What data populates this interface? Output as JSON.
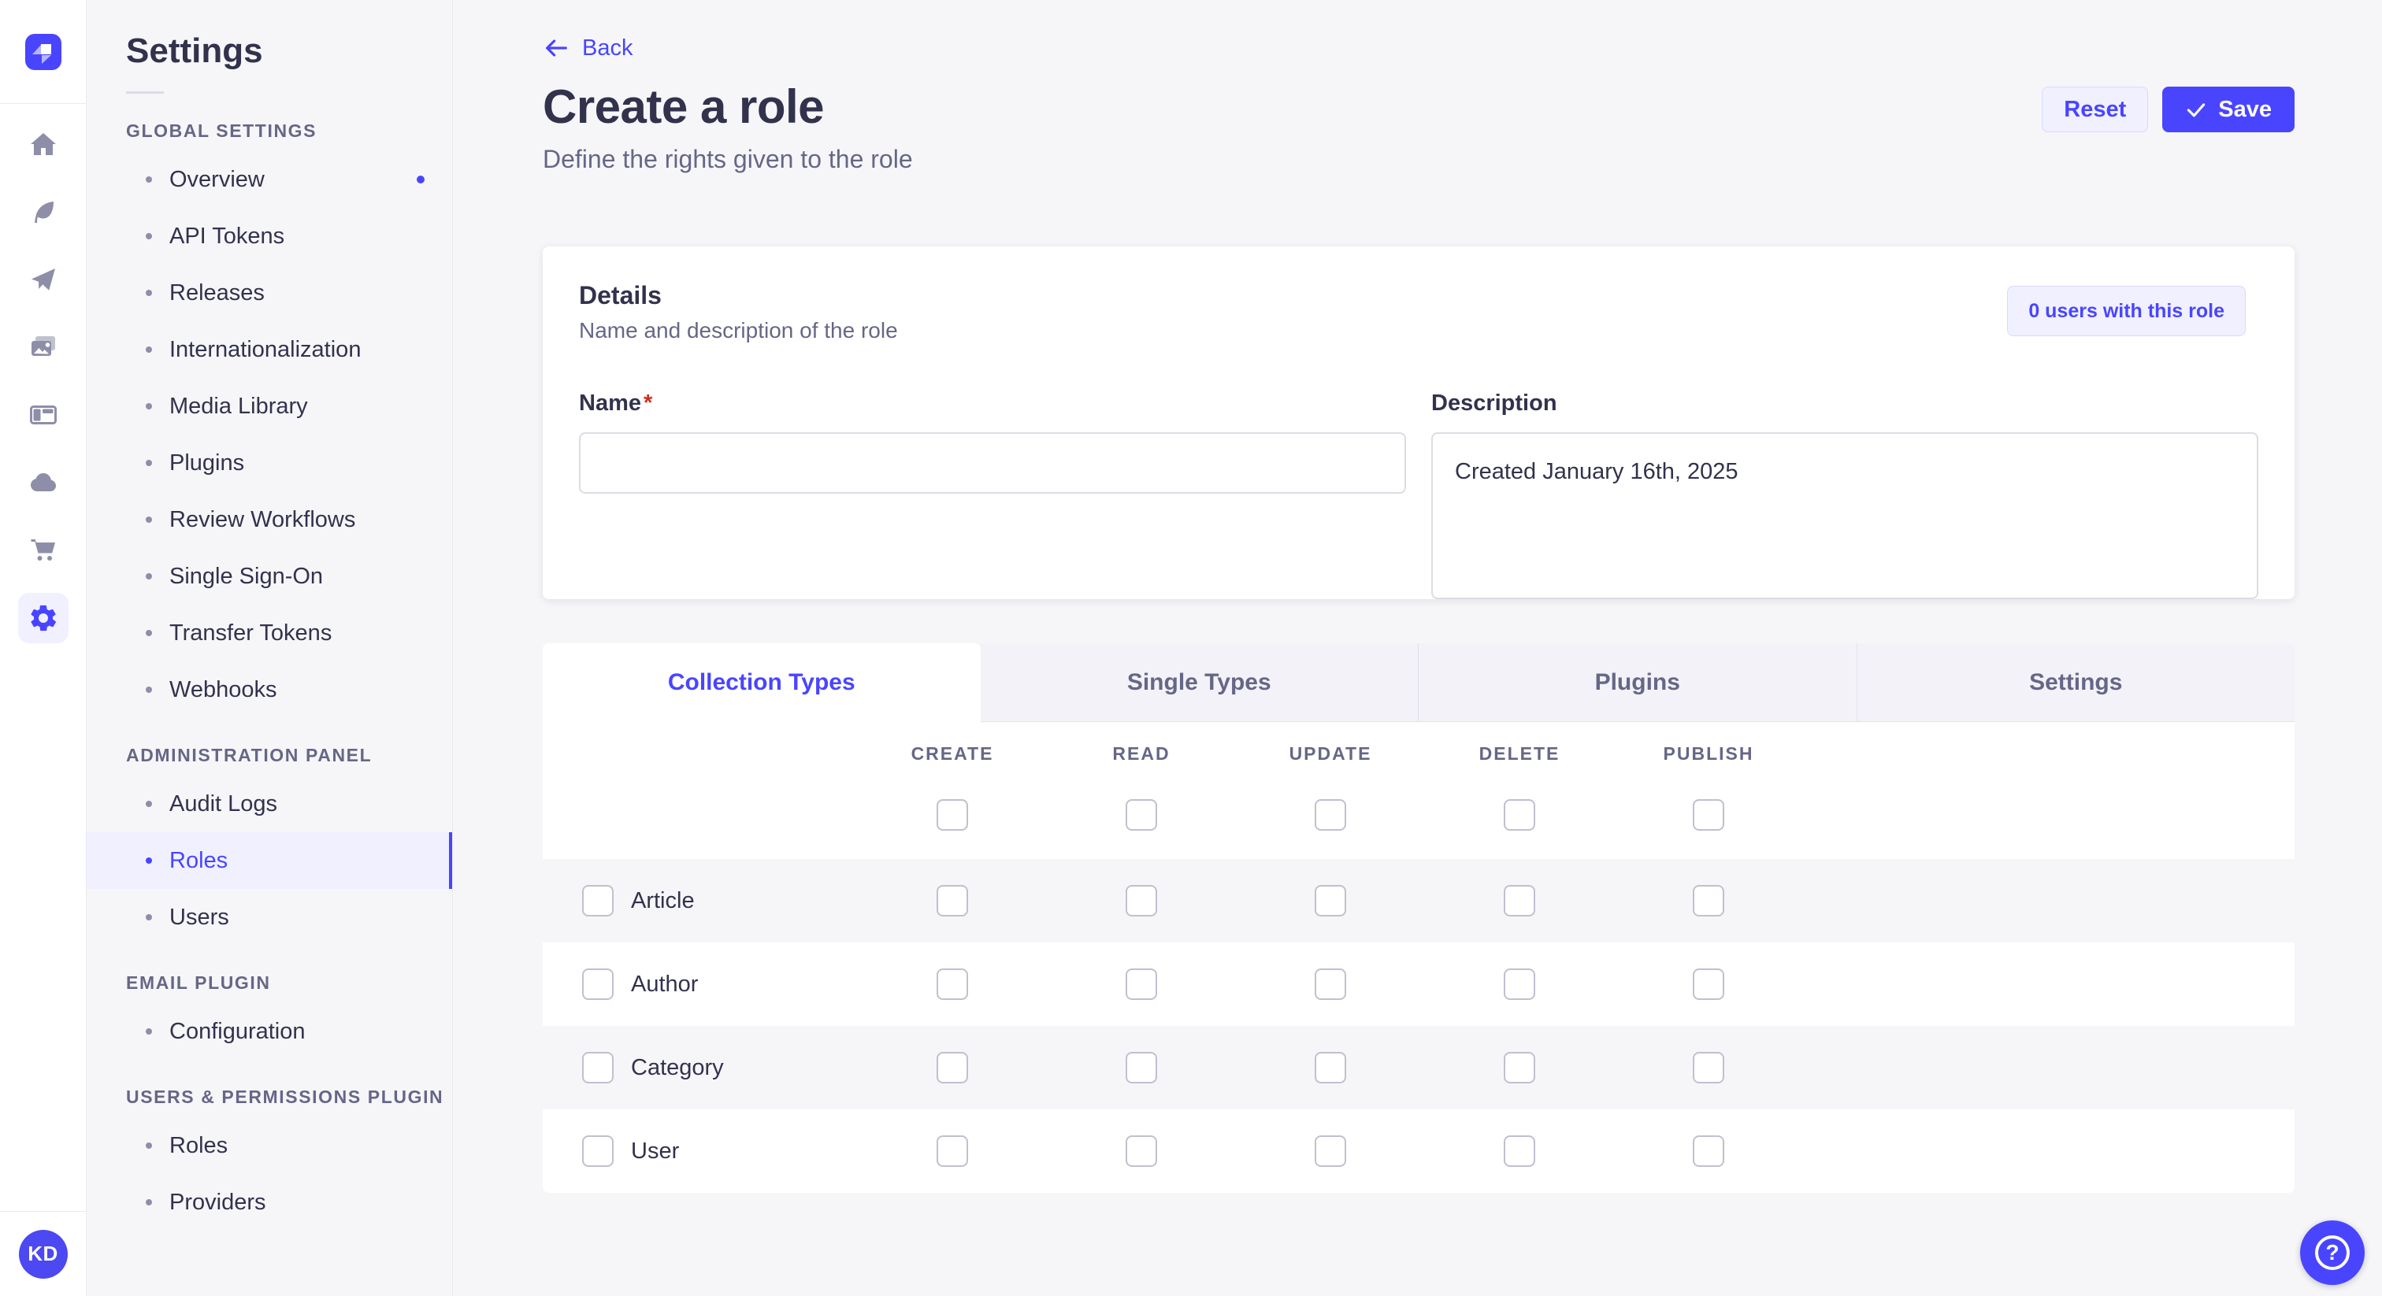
{
  "colors": {
    "primary": "#4945ff",
    "primary_light_bg": "#f0f0ff",
    "primary_light_border": "#d9d8ff",
    "page_bg": "#f6f6f9",
    "text_dark": "#32324d",
    "text_muted": "#666687",
    "border": "#eaeaef",
    "checkbox_border": "#c0c0cf",
    "required_red": "#d02b20"
  },
  "rail": {
    "logo_icon": "strapi-logo-icon",
    "items": [
      {
        "icon": "home-icon"
      },
      {
        "icon": "content-feather-icon"
      },
      {
        "icon": "release-plane-icon"
      },
      {
        "icon": "media-library-icon"
      },
      {
        "icon": "content-type-builder-icon"
      },
      {
        "icon": "deploy-cloud-icon"
      },
      {
        "icon": "marketplace-cart-icon"
      },
      {
        "icon": "settings-gear-icon",
        "active": true
      }
    ],
    "avatar_initials": "KD"
  },
  "sidebar": {
    "title": "Settings",
    "sections": [
      {
        "label": "Global Settings",
        "items": [
          {
            "label": "Overview",
            "notification": true
          },
          {
            "label": "API Tokens"
          },
          {
            "label": "Releases"
          },
          {
            "label": "Internationalization"
          },
          {
            "label": "Media Library"
          },
          {
            "label": "Plugins"
          },
          {
            "label": "Review Workflows"
          },
          {
            "label": "Single Sign-On"
          },
          {
            "label": "Transfer Tokens"
          },
          {
            "label": "Webhooks"
          }
        ]
      },
      {
        "label": "Administration Panel",
        "items": [
          {
            "label": "Audit Logs"
          },
          {
            "label": "Roles",
            "active": true
          },
          {
            "label": "Users"
          }
        ]
      },
      {
        "label": "Email Plugin",
        "items": [
          {
            "label": "Configuration"
          }
        ]
      },
      {
        "label": "Users & Permissions Plugin",
        "items": [
          {
            "label": "Roles"
          },
          {
            "label": "Providers"
          }
        ]
      }
    ]
  },
  "header": {
    "back_label": "Back",
    "title": "Create a role",
    "subtitle": "Define the rights given to the role",
    "reset_label": "Reset",
    "save_label": "Save"
  },
  "details": {
    "heading": "Details",
    "subheading": "Name and description of the role",
    "users_button_label": "0 users with this role",
    "name_label": "Name",
    "name_required_mark": "*",
    "name_value": "",
    "description_label": "Description",
    "description_value": "Created January 16th, 2025"
  },
  "tabs": [
    {
      "label": "Collection Types",
      "active": true
    },
    {
      "label": "Single Types"
    },
    {
      "label": "Plugins"
    },
    {
      "label": "Settings"
    }
  ],
  "permissions": {
    "columns": [
      "CREATE",
      "READ",
      "UPDATE",
      "DELETE",
      "PUBLISH"
    ],
    "select_all_checked": [
      false,
      false,
      false,
      false,
      false
    ],
    "rows": [
      {
        "name": "Article",
        "row_checked": false,
        "checked": [
          false,
          false,
          false,
          false,
          false
        ]
      },
      {
        "name": "Author",
        "row_checked": false,
        "checked": [
          false,
          false,
          false,
          false,
          false
        ]
      },
      {
        "name": "Category",
        "row_checked": false,
        "checked": [
          false,
          false,
          false,
          false,
          false
        ]
      },
      {
        "name": "User",
        "row_checked": false,
        "checked": [
          false,
          false,
          false,
          false,
          false
        ]
      }
    ]
  },
  "help": {
    "icon": "help-icon"
  }
}
